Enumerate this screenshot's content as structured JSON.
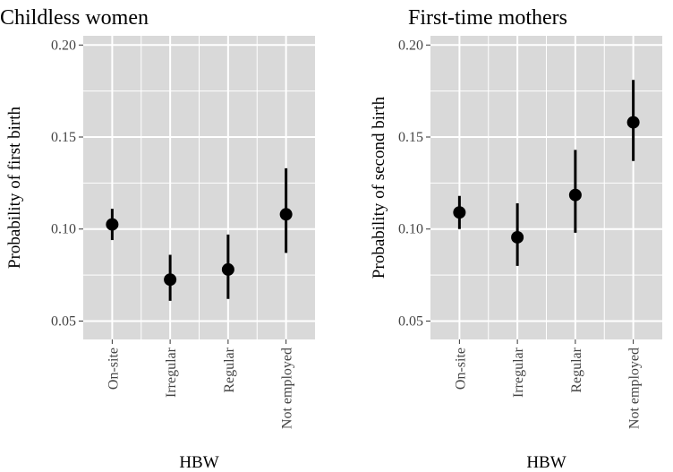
{
  "colors": {
    "panel_bg": "#d9d9d9",
    "grid": "#ffffff",
    "mark": "#000000"
  },
  "chart_data": [
    {
      "type": "scatter",
      "title": "Childless women",
      "xlabel": "HBW",
      "ylabel": "Probability of first birth",
      "categories": [
        "On-site",
        "Irregular",
        "Regular",
        "Not employed"
      ],
      "values": [
        0.1025,
        0.0725,
        0.078,
        0.108
      ],
      "lower": [
        0.094,
        0.061,
        0.062,
        0.087
      ],
      "upper": [
        0.111,
        0.086,
        0.097,
        0.133
      ],
      "ylim": [
        0.04,
        0.205
      ],
      "yticks": [
        0.05,
        0.1,
        0.15,
        0.2
      ],
      "ytick_labels": [
        "0.05",
        "0.10",
        "0.15",
        "0.20"
      ],
      "grid": true
    },
    {
      "type": "scatter",
      "title": "First-time mothers",
      "xlabel": "HBW",
      "ylabel": "Probability of second birth",
      "categories": [
        "On-site",
        "Irregular",
        "Regular",
        "Not employed"
      ],
      "values": [
        0.109,
        0.0955,
        0.1185,
        0.158
      ],
      "lower": [
        0.1,
        0.08,
        0.098,
        0.137
      ],
      "upper": [
        0.118,
        0.114,
        0.143,
        0.181
      ],
      "ylim": [
        0.04,
        0.205
      ],
      "yticks": [
        0.05,
        0.1,
        0.15,
        0.2
      ],
      "ytick_labels": [
        "0.05",
        "0.10",
        "0.15",
        "0.20"
      ],
      "grid": true
    }
  ]
}
